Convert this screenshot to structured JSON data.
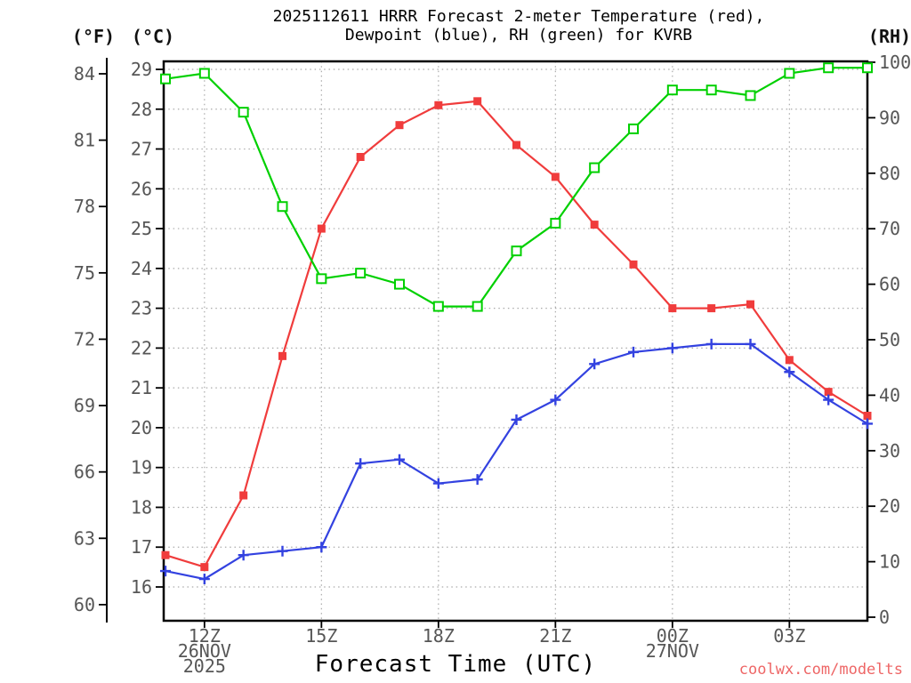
{
  "title": {
    "line1": "2025112611 HRRR Forecast 2-meter Temperature (red),",
    "line2": "Dewpoint (blue), RH (green) for KVRB"
  },
  "axis_headers": {
    "left_f": "(°F)",
    "left_c": "(°C)",
    "right_rh": "(RH)"
  },
  "footer": {
    "credit": "coolwx.com/modelts"
  },
  "colors": {
    "temperature": "#f03c3c",
    "dewpoint": "#3342e0",
    "rh": "#00d000",
    "grid": "#aaaaaa",
    "tick_text": "#565656",
    "credit": "#ee6666"
  },
  "chart_data": {
    "type": "line",
    "title": "2025112611 HRRR Forecast 2-meter Temperature (red), Dewpoint (blue), RH (green) for KVRB",
    "xlabel": "Forecast Time (UTC)",
    "station": "KVRB",
    "model_run": "2025112611 HRRR",
    "x": [
      "11Z",
      "12Z",
      "13Z",
      "14Z",
      "15Z",
      "16Z",
      "17Z",
      "18Z",
      "19Z",
      "20Z",
      "21Z",
      "22Z",
      "23Z",
      "00Z",
      "01Z",
      "02Z",
      "03Z",
      "04Z",
      "05Z"
    ],
    "x_span_note": "hourly, 11Z 26NOV2025 through 05Z 27NOV2025",
    "x_ticks": [
      {
        "at": "12Z",
        "lines": [
          "12Z",
          "26NOV",
          "2025"
        ]
      },
      {
        "at": "15Z",
        "lines": [
          "15Z"
        ]
      },
      {
        "at": "18Z",
        "lines": [
          "18Z"
        ]
      },
      {
        "at": "21Z",
        "lines": [
          "21Z"
        ]
      },
      {
        "at": "00Z",
        "lines": [
          "00Z",
          "27NOV"
        ]
      },
      {
        "at": "03Z",
        "lines": [
          "03Z"
        ]
      }
    ],
    "axes": {
      "fahrenheit": {
        "ticks": [
          84,
          81,
          78,
          75,
          72,
          69,
          66,
          63,
          60
        ]
      },
      "celsius": {
        "ticks": [
          29,
          28,
          27,
          26,
          25,
          24,
          23,
          22,
          21,
          20,
          19,
          18,
          17,
          16
        ],
        "range": [
          15.2,
          29.2
        ]
      },
      "rh": {
        "ticks": [
          100,
          90,
          80,
          70,
          60,
          50,
          40,
          30,
          20,
          10,
          0
        ],
        "range": [
          0,
          100
        ]
      }
    },
    "grid": true,
    "legend_note": "series identified by color in title",
    "series": [
      {
        "name": "2-meter Temperature",
        "unit": "°C",
        "axis": "celsius",
        "color_key": "temperature",
        "marker": "filled-square",
        "values": [
          16.8,
          16.5,
          18.3,
          21.8,
          25.0,
          26.8,
          27.6,
          28.1,
          28.2,
          27.1,
          26.3,
          25.1,
          24.1,
          23.0,
          23.0,
          23.1,
          21.7,
          20.9,
          20.3
        ]
      },
      {
        "name": "2-meter Dewpoint",
        "unit": "°C",
        "axis": "celsius",
        "color_key": "dewpoint",
        "marker": "plus",
        "values": [
          16.4,
          16.2,
          16.8,
          16.9,
          17.0,
          19.1,
          19.2,
          18.6,
          18.7,
          20.2,
          20.7,
          21.6,
          21.9,
          22.0,
          22.1,
          22.1,
          21.4,
          20.7,
          20.1
        ]
      },
      {
        "name": "Relative Humidity",
        "unit": "%",
        "axis": "rh",
        "color_key": "rh",
        "marker": "open-square",
        "values": [
          97,
          98,
          91,
          74,
          61,
          62,
          60,
          56,
          56,
          66,
          71,
          81,
          88,
          95,
          95,
          94,
          98,
          99,
          99
        ]
      }
    ]
  }
}
